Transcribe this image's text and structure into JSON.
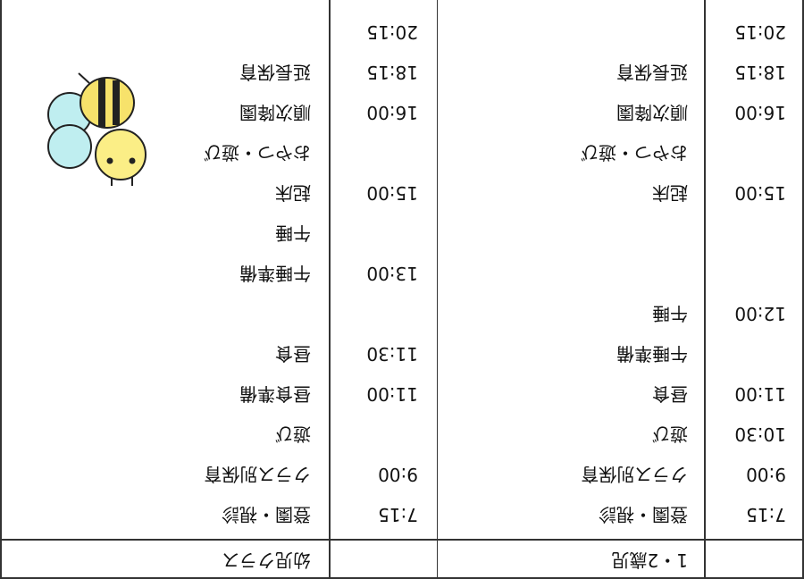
{
  "table": {
    "headers": [
      "1・2歳児",
      "幼児クラス"
    ],
    "rows": [
      [
        "7:15",
        "登園・視診",
        "7:15",
        "登園・視診"
      ],
      [
        "9:00",
        "クラス別保育",
        "9:00",
        "クラス別保育"
      ],
      [
        "10:30",
        "遊び",
        null,
        "遊び"
      ],
      [
        "11:00",
        "昼食",
        "11:00",
        "昼食準備"
      ],
      [
        null,
        "午睡準備",
        "11:30",
        "昼食"
      ],
      [
        "12:00",
        "午睡",
        null,
        null
      ],
      [
        null,
        null,
        "13:00",
        "午睡準備"
      ],
      [
        null,
        null,
        null,
        "午睡"
      ],
      [
        "15:00",
        "起床",
        "15:00",
        "起床"
      ],
      [
        null,
        "おやつ・遊び",
        null,
        "おやつ・遊び"
      ],
      [
        "16:00",
        "順次降園",
        "16:00",
        "順次降園"
      ],
      [
        "18:15",
        "延長保育",
        "18:15",
        "延長保育"
      ],
      [
        "20:15",
        null,
        "20:15",
        null
      ]
    ]
  }
}
